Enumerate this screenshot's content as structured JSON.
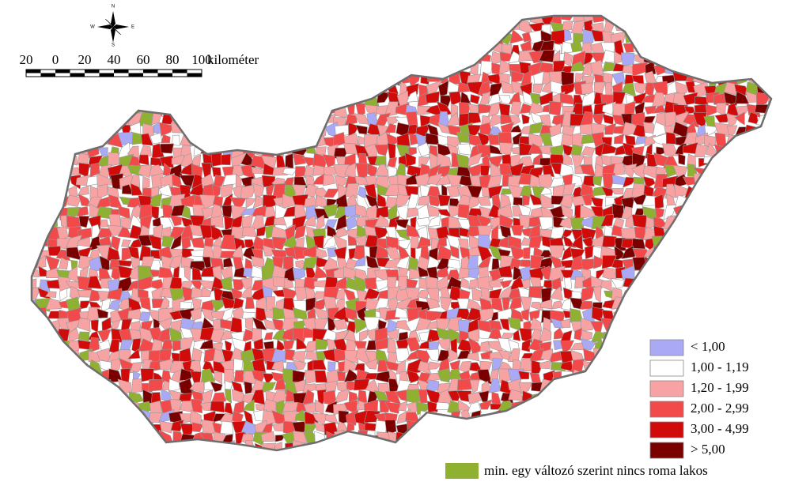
{
  "compass": {
    "north": "N",
    "west": "W",
    "east": "E",
    "south": "S"
  },
  "scale_bar": {
    "labels": [
      "20",
      "0",
      "20",
      "40",
      "60",
      "80",
      "100"
    ],
    "unit": "kilométer"
  },
  "legend": {
    "items": [
      {
        "label": "< 1,00",
        "color": "#a9a9f5"
      },
      {
        "label": "1,00 - 1,19",
        "color": "#ffffff"
      },
      {
        "label": "1,20 - 1,99",
        "color": "#f7a3a3"
      },
      {
        "label": "2,00 - 2,99",
        "color": "#f24a4a"
      },
      {
        "label": "3,00 - 4,99",
        "color": "#d10a0a"
      },
      {
        "label": "> 5,00",
        "color": "#7a0000"
      }
    ],
    "no_data": {
      "label": "min. egy változó szerint nincs roma lakos",
      "color": "#8fb031"
    }
  }
}
